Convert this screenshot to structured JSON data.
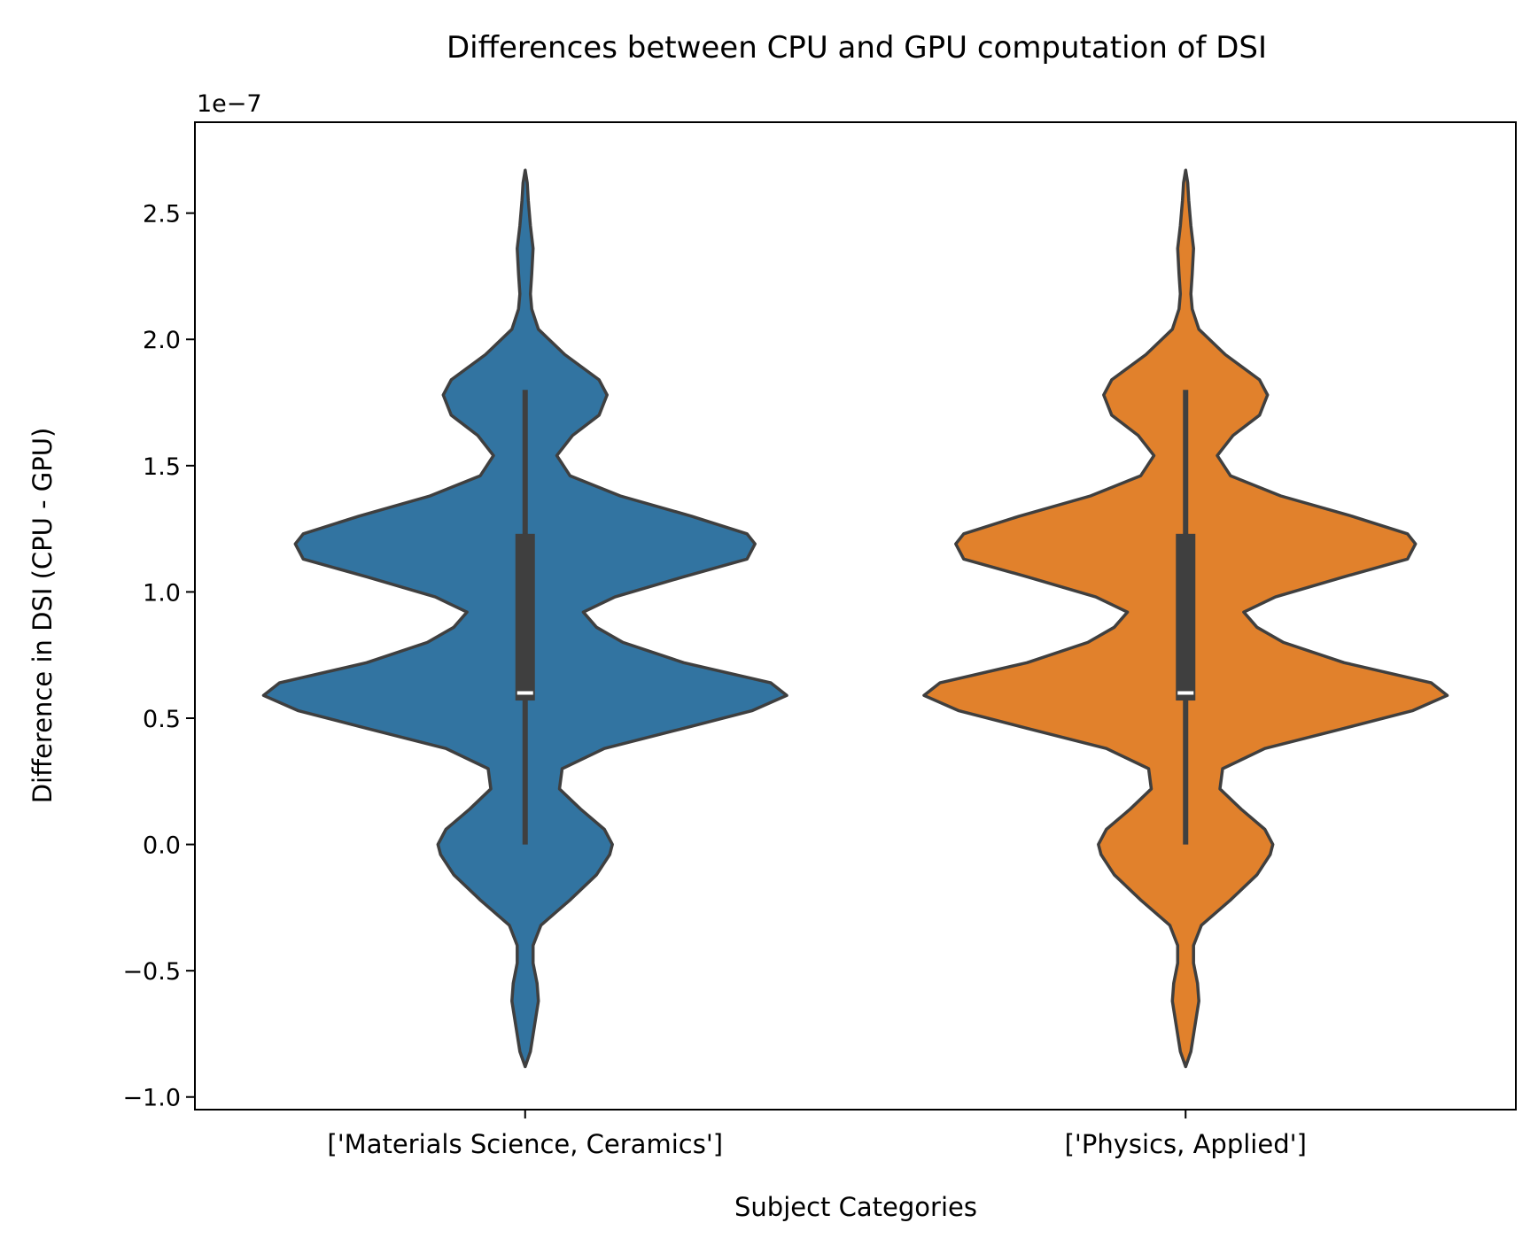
{
  "chart_data": {
    "type": "violin",
    "title": "Differences between CPU and GPU computation of DSI",
    "xlabel": "Subject Categories",
    "ylabel": "Difference in DSI (CPU - GPU)",
    "y_offset_label": "1e−7",
    "y_scale": 1e-07,
    "ylim": [
      -1.05,
      2.86
    ],
    "yticks": [
      -1.0,
      -0.5,
      0.0,
      0.5,
      1.0,
      1.5,
      2.0,
      2.5
    ],
    "ytick_labels": [
      "−1.0",
      "−0.5",
      "0.0",
      "0.5",
      "1.0",
      "1.5",
      "2.0",
      "2.5"
    ],
    "categories": [
      "['Materials Science, Ceramics']",
      "['Physics, Applied']"
    ],
    "colors": [
      "#3274a1",
      "#e1812c"
    ],
    "outline_color": "#3f3f3f",
    "median_color": "#ffffff",
    "density_profile": [
      [
        -0.88,
        0.0
      ],
      [
        -0.82,
        0.02
      ],
      [
        -0.72,
        0.035
      ],
      [
        -0.62,
        0.05
      ],
      [
        -0.55,
        0.045
      ],
      [
        -0.47,
        0.03
      ],
      [
        -0.4,
        0.03
      ],
      [
        -0.32,
        0.06
      ],
      [
        -0.22,
        0.17
      ],
      [
        -0.12,
        0.27
      ],
      [
        -0.04,
        0.32
      ],
      [
        0.0,
        0.33
      ],
      [
        0.06,
        0.3
      ],
      [
        0.14,
        0.21
      ],
      [
        0.22,
        0.13
      ],
      [
        0.3,
        0.14
      ],
      [
        0.38,
        0.3
      ],
      [
        0.46,
        0.6
      ],
      [
        0.53,
        0.86
      ],
      [
        0.59,
        0.99
      ],
      [
        0.64,
        0.93
      ],
      [
        0.72,
        0.6
      ],
      [
        0.8,
        0.37
      ],
      [
        0.86,
        0.27
      ],
      [
        0.92,
        0.22
      ],
      [
        0.98,
        0.34
      ],
      [
        1.06,
        0.6
      ],
      [
        1.13,
        0.84
      ],
      [
        1.19,
        0.87
      ],
      [
        1.23,
        0.84
      ],
      [
        1.3,
        0.63
      ],
      [
        1.38,
        0.36
      ],
      [
        1.46,
        0.17
      ],
      [
        1.54,
        0.12
      ],
      [
        1.62,
        0.18
      ],
      [
        1.7,
        0.28
      ],
      [
        1.78,
        0.31
      ],
      [
        1.84,
        0.28
      ],
      [
        1.94,
        0.15
      ],
      [
        2.04,
        0.05
      ],
      [
        2.12,
        0.025
      ],
      [
        2.18,
        0.02
      ],
      [
        2.26,
        0.025
      ],
      [
        2.36,
        0.03
      ],
      [
        2.45,
        0.02
      ],
      [
        2.55,
        0.012
      ],
      [
        2.62,
        0.008
      ],
      [
        2.67,
        0.0
      ]
    ],
    "box": {
      "q1": 0.57,
      "median": 0.6,
      "q3": 1.23,
      "whisker_low": 0.0,
      "whisker_high": 1.8
    }
  }
}
